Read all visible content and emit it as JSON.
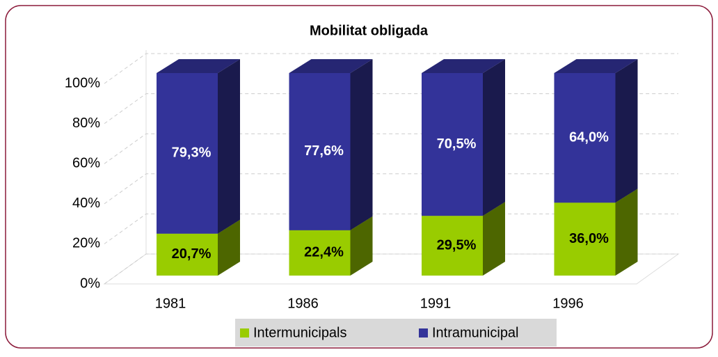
{
  "chart_data": {
    "type": "bar",
    "stacked": true,
    "three_d": true,
    "title": "Mobilitat obligada",
    "categories": [
      "1981",
      "1986",
      "1991",
      "1996"
    ],
    "series": [
      {
        "name": "Intermunicipals",
        "color": "#99cc00",
        "values": [
          20.7,
          22.4,
          29.5,
          36.0
        ],
        "value_labels": [
          "20,7%",
          "22,4%",
          "29,5%",
          "36,0%"
        ]
      },
      {
        "name": "Intramunicipal",
        "color": "#333399",
        "values": [
          79.3,
          77.6,
          70.5,
          64.0
        ],
        "value_labels": [
          "79,3%",
          "77,6%",
          "70,5%",
          "64,0%"
        ]
      }
    ],
    "ylim": [
      0,
      100
    ],
    "yticks": [
      {
        "value": 0,
        "label": "0%"
      },
      {
        "value": 20,
        "label": "20%"
      },
      {
        "value": 40,
        "label": "40%"
      },
      {
        "value": 60,
        "label": "60%"
      },
      {
        "value": 80,
        "label": "80%"
      },
      {
        "value": 100,
        "label": "100%"
      }
    ],
    "grid": true,
    "legend": "bottom"
  }
}
